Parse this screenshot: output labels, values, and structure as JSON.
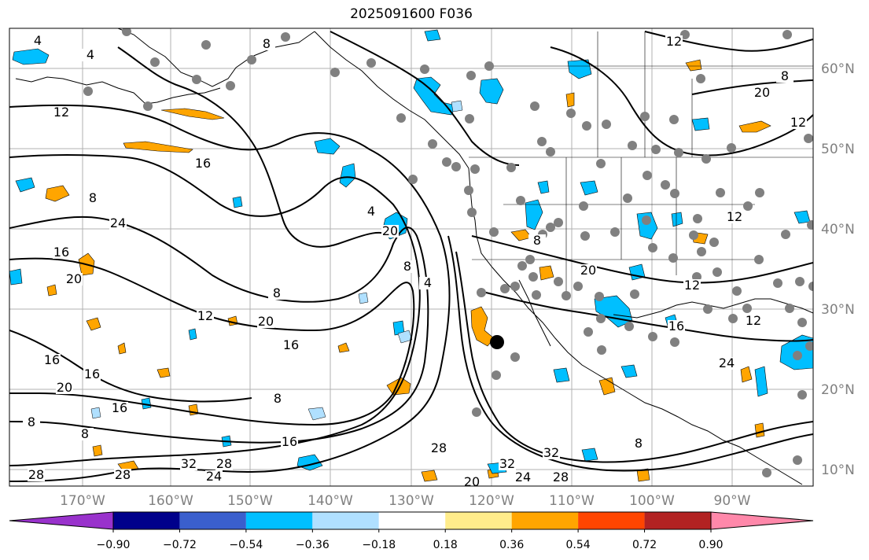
{
  "title": "2025091600 F036",
  "map": {
    "longitude_labels": [
      "170°W",
      "160°W",
      "150°W",
      "140°W",
      "130°W",
      "120°W",
      "110°W",
      "100°W",
      "90°W"
    ],
    "latitude_labels": [
      "60°N",
      "50°N",
      "40°N",
      "30°N",
      "20°N",
      "10°N"
    ],
    "grid": true,
    "contour_labels": [
      "4",
      "4",
      "8",
      "12",
      "12",
      "8",
      "16",
      "20",
      "8",
      "24",
      "16",
      "20",
      "8",
      "12",
      "20",
      "16",
      "16",
      "16",
      "20",
      "16",
      "12",
      "8",
      "8",
      "8",
      "28",
      "28",
      "28",
      "24",
      "32",
      "32",
      "32",
      "28",
      "24",
      "28",
      "20",
      "4",
      "4",
      "8",
      "12",
      "12",
      "8",
      "20",
      "16",
      "16",
      "12",
      "20",
      "24",
      "8"
    ],
    "marker_color": "#000000",
    "station_color": "#808080"
  },
  "colorbar": {
    "colors": [
      "#9932cc",
      "#00008b",
      "#3a5fcd",
      "#00bfff",
      "#b0e0ff",
      "#ffffff",
      "#ffec8b",
      "#ffa500",
      "#ff4500",
      "#b22222",
      "#ff88aa"
    ],
    "tick_labels": [
      "−0.90",
      "−0.72",
      "−0.54",
      "−0.36",
      "−0.18",
      "0.18",
      "0.36",
      "0.54",
      "0.72",
      "0.90"
    ],
    "extend": "both"
  }
}
